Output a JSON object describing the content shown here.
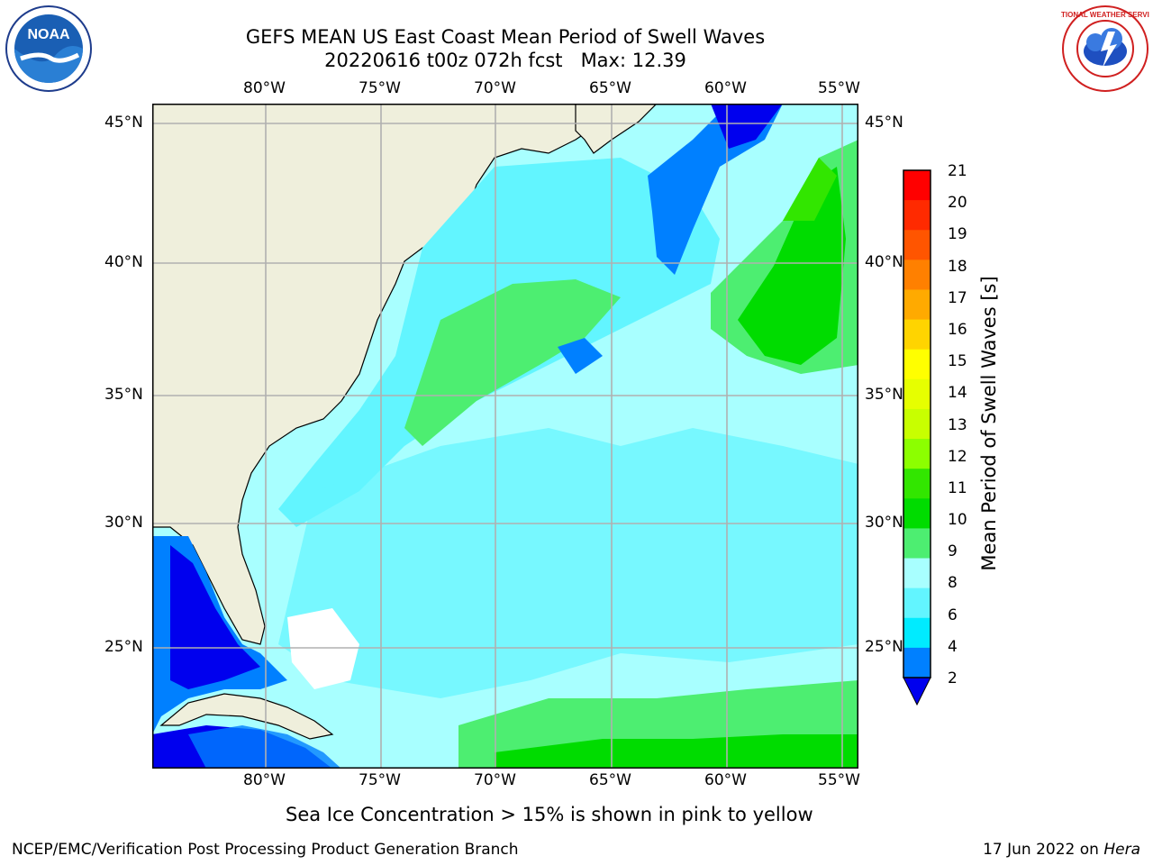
{
  "title_line1": "GEFS MEAN US East Coast Mean Period of Swell Waves",
  "title_line2": "20220616 t00z 072h fcst   Max: 12.39",
  "logos": {
    "left": "NOAA",
    "right": "NATIONAL WEATHER SERVICE"
  },
  "lon_labels": [
    "80°W",
    "75°W",
    "70°W",
    "65°W",
    "60°W",
    "55°W"
  ],
  "lat_labels": [
    "45°N",
    "40°N",
    "35°N",
    "30°N",
    "25°N"
  ],
  "colorbar": {
    "label": "Mean Period of Swell Waves [s]",
    "ticks": [
      "21",
      "20",
      "19",
      "18",
      "17",
      "16",
      "15",
      "14",
      "13",
      "12",
      "11",
      "10",
      "9",
      "8",
      "6",
      "4",
      "2"
    ],
    "colors": [
      "#ff0000",
      "#ff2a00",
      "#ff5500",
      "#ff8000",
      "#ffaa00",
      "#ffd400",
      "#ffff00",
      "#e6ff00",
      "#c8ff00",
      "#8cff00",
      "#32e600",
      "#00dc00",
      "#4dee71",
      "#a8ffff",
      "#62f5ff",
      "#00ebff",
      "#0080ff",
      "#0000ee"
    ]
  },
  "note": "Sea Ice Concentration > 15% is shown in pink to yellow",
  "footer_left": "NCEP/EMC/Verification Post Processing Product Generation Branch",
  "footer_date": "17 Jun 2022 on",
  "footer_machine": "Hera"
}
